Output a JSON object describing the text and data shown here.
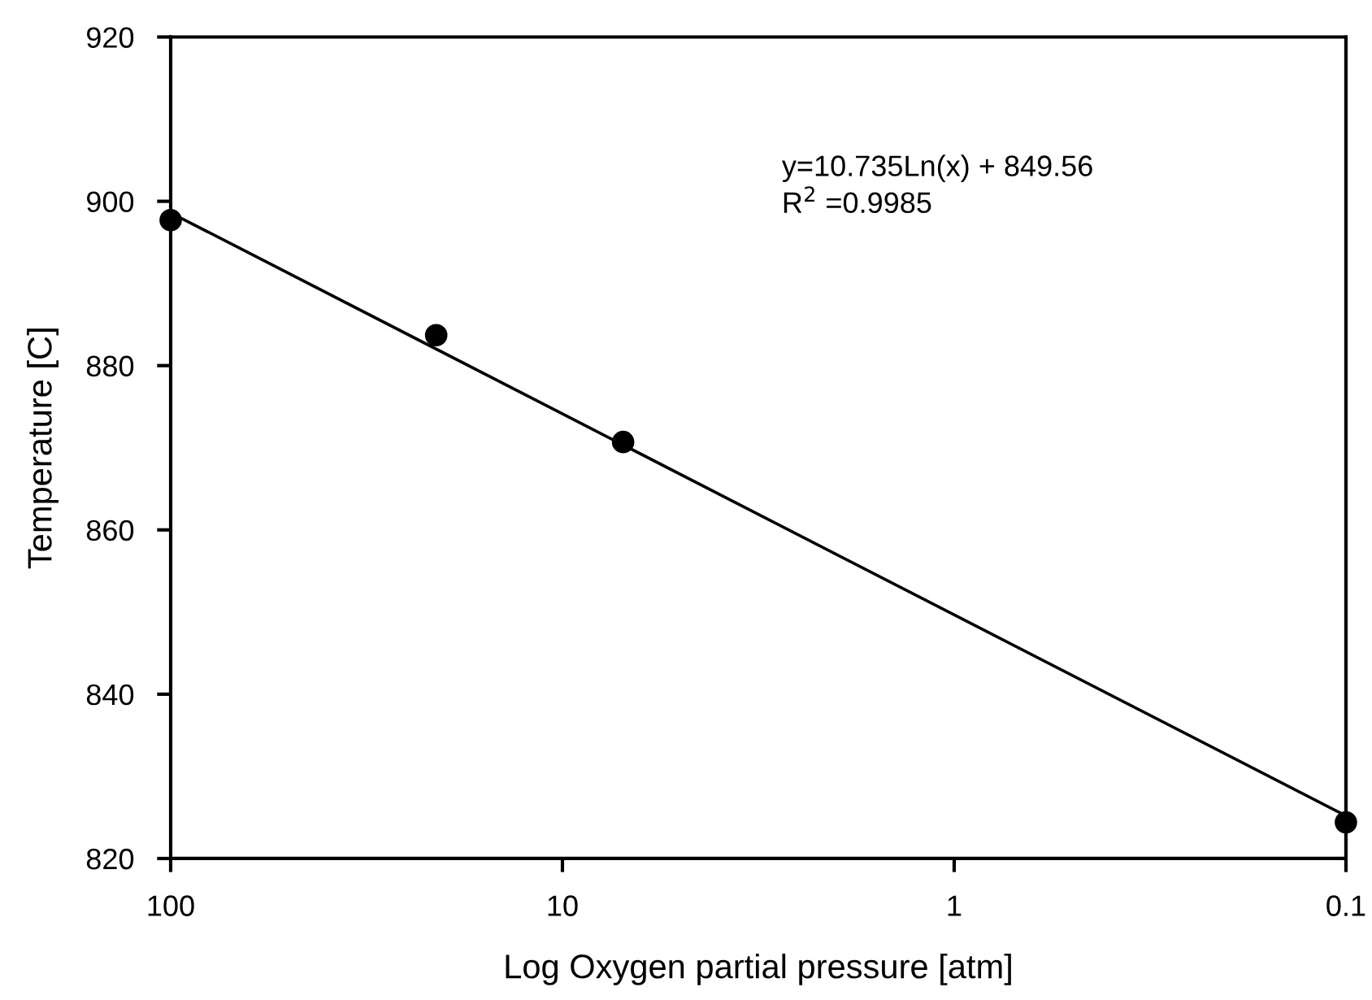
{
  "chart_data": {
    "type": "scatter",
    "xlabel": "Log Oxygen partial pressure [atm]",
    "ylabel": "Temperature [C]",
    "log": "x",
    "xlim": [
      100,
      0.1
    ],
    "xticks": [
      100,
      10,
      1,
      0.1
    ],
    "ylim": [
      820,
      920
    ],
    "yticks": [
      820,
      840,
      860,
      880,
      900,
      920
    ],
    "grid": false,
    "legend": false,
    "marker": "circle",
    "annotations": [
      "y=10.735Ln(x) + 849.56",
      "R$^{2}$ =0.9985"
    ],
    "series": [
      {
        "color": "#000000",
        "x": [
          100,
          21,
          7,
          0.1
        ],
        "values": [
          897.7,
          883.7,
          870.7,
          824.4
        ]
      },
      {
        "type": "line",
        "color": "#000000",
        "marker": "none",
        "line_style": "solid",
        "x": [
          100,
          0.1
        ],
        "values": [
          898.6,
          825.2
        ]
      }
    ]
  }
}
